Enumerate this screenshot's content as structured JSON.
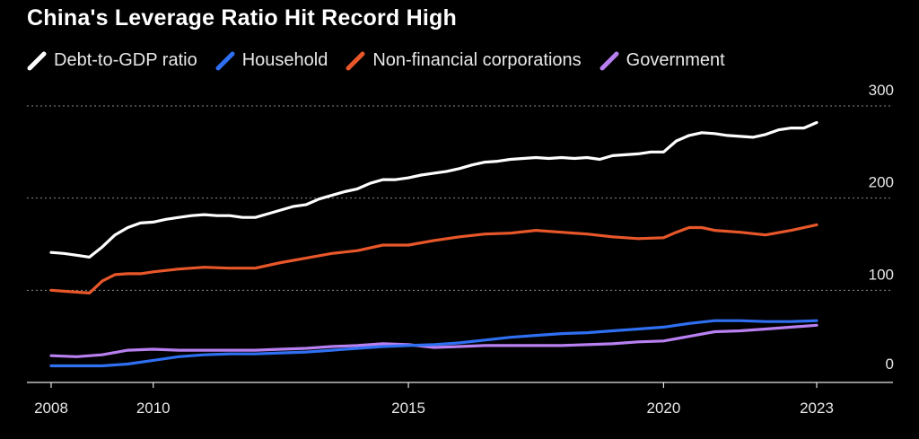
{
  "title": "China's Leverage Ratio Hit Record High",
  "chart_data": {
    "type": "line",
    "title": "China's Leverage Ratio Hit Record High",
    "xlabel": "",
    "ylabel": "",
    "x_range": [
      2008,
      2023
    ],
    "ylim": [
      0,
      300
    ],
    "x_ticks": [
      "2008",
      "2010",
      "2015",
      "2020",
      "2023"
    ],
    "y_ticks": [
      "300",
      "200",
      "100",
      "0"
    ],
    "grid": true,
    "legend_position": "top-left",
    "series": [
      {
        "name": "Debt-to-GDP ratio",
        "color": "#ffffff",
        "x": [
          2008,
          2008.25,
          2008.5,
          2008.75,
          2009,
          2009.25,
          2009.5,
          2009.75,
          2010,
          2010.25,
          2010.5,
          2010.75,
          2011,
          2011.25,
          2011.5,
          2011.75,
          2012,
          2012.25,
          2012.5,
          2012.75,
          2013,
          2013.25,
          2013.5,
          2013.75,
          2014,
          2014.25,
          2014.5,
          2014.75,
          2015,
          2015.25,
          2015.5,
          2015.75,
          2016,
          2016.25,
          2016.5,
          2016.75,
          2017,
          2017.25,
          2017.5,
          2017.75,
          2018,
          2018.25,
          2018.5,
          2018.75,
          2019,
          2019.25,
          2019.5,
          2019.75,
          2020,
          2020.25,
          2020.5,
          2020.75,
          2021,
          2021.25,
          2021.5,
          2021.75,
          2022,
          2022.25,
          2022.5,
          2022.75,
          2023
        ],
        "values": [
          141,
          140,
          138,
          136,
          147,
          160,
          168,
          173,
          174,
          177,
          179,
          181,
          182,
          181,
          181,
          179,
          179,
          183,
          187,
          191,
          193,
          199,
          203,
          207,
          210,
          216,
          220,
          220,
          222,
          225,
          227,
          229,
          232,
          236,
          239,
          240,
          242,
          243,
          244,
          243,
          244,
          243,
          244,
          242,
          246,
          247,
          248,
          250,
          250,
          262,
          268,
          271,
          270,
          268,
          267,
          266,
          269,
          274,
          276,
          276,
          282
        ]
      },
      {
        "name": "Household",
        "color": "#2f6ff2",
        "x": [
          2008,
          2008.5,
          2009,
          2009.5,
          2010,
          2010.5,
          2011,
          2011.5,
          2012,
          2012.5,
          2013,
          2013.5,
          2014,
          2014.5,
          2015,
          2015.5,
          2016,
          2016.5,
          2017,
          2017.5,
          2018,
          2018.5,
          2019,
          2019.5,
          2020,
          2020.5,
          2021,
          2021.5,
          2022,
          2022.5,
          2023
        ],
        "values": [
          18,
          18,
          18,
          20,
          24,
          28,
          30,
          31,
          31,
          32,
          33,
          35,
          37,
          39,
          40,
          41,
          43,
          46,
          49,
          51,
          53,
          54,
          56,
          58,
          60,
          64,
          67,
          67,
          66,
          66,
          67
        ]
      },
      {
        "name": "Non-financial corporations",
        "color": "#e8572a",
        "x": [
          2008,
          2008.25,
          2008.5,
          2008.75,
          2009,
          2009.25,
          2009.5,
          2009.75,
          2010,
          2010.5,
          2011,
          2011.5,
          2012,
          2012.5,
          2013,
          2013.5,
          2014,
          2014.5,
          2015,
          2015.5,
          2016,
          2016.5,
          2017,
          2017.5,
          2018,
          2018.5,
          2019,
          2019.5,
          2020,
          2020.25,
          2020.5,
          2020.75,
          2021,
          2021.5,
          2022,
          2022.5,
          2023
        ],
        "values": [
          100,
          99,
          98,
          97,
          110,
          117,
          118,
          118,
          120,
          123,
          125,
          124,
          124,
          130,
          135,
          140,
          143,
          149,
          149,
          154,
          158,
          161,
          162,
          165,
          163,
          161,
          158,
          156,
          157,
          163,
          168,
          168,
          165,
          163,
          160,
          165,
          171
        ]
      },
      {
        "name": "Government",
        "color": "#b880f0",
        "x": [
          2008,
          2008.5,
          2009,
          2009.5,
          2010,
          2010.5,
          2011,
          2011.5,
          2012,
          2012.5,
          2013,
          2013.5,
          2014,
          2014.5,
          2015,
          2015.5,
          2016,
          2016.5,
          2017,
          2017.5,
          2018,
          2018.5,
          2019,
          2019.5,
          2020,
          2020.5,
          2021,
          2021.5,
          2022,
          2022.5,
          2023
        ],
        "values": [
          29,
          28,
          30,
          35,
          36,
          35,
          35,
          35,
          35,
          36,
          37,
          39,
          40,
          42,
          41,
          38,
          39,
          40,
          40,
          40,
          40,
          41,
          42,
          44,
          45,
          50,
          55,
          56,
          58,
          60,
          62
        ]
      }
    ]
  }
}
